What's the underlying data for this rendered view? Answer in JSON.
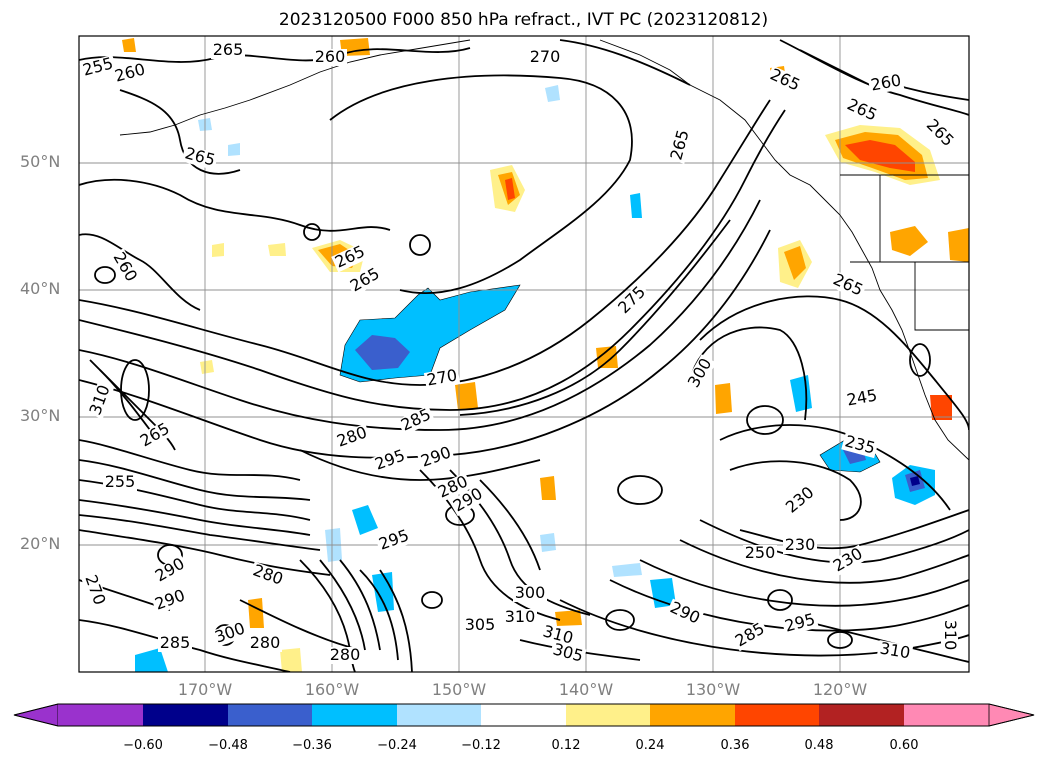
{
  "title": "2023120500 F000 850 hPa refract., IVT PC (2023120812)",
  "latitude_labels": [
    "50°N",
    "40°N",
    "30°N",
    "20°N"
  ],
  "longitude_labels": [
    "170°W",
    "160°W",
    "150°W",
    "140°W",
    "130°W",
    "120°W"
  ],
  "colorbar": {
    "ticks": [
      "−0.60",
      "−0.48",
      "−0.36",
      "−0.24",
      "−0.12",
      "0.12",
      "0.24",
      "0.36",
      "0.48",
      "0.60"
    ],
    "colors": [
      "#9a32cd",
      "#00008b",
      "#3a5fcd",
      "#00bfff",
      "#b0e2ff",
      "#ffffff",
      "#fff08a",
      "#ffa500",
      "#ff4500",
      "#b22222",
      "#ff89b4"
    ]
  },
  "contour_labels": [
    "255",
    "260",
    "265",
    "260",
    "270",
    "265",
    "260",
    "265",
    "265",
    "265",
    "265",
    "265",
    "270",
    "275",
    "280",
    "285",
    "290",
    "295",
    "280",
    "265",
    "280",
    "290",
    "270",
    "290",
    "295",
    "280",
    "285",
    "280",
    "300",
    "305",
    "310",
    "310",
    "305",
    "300",
    "290",
    "295",
    "285",
    "230",
    "235",
    "245",
    "265",
    "230",
    "250",
    "230",
    "300",
    "310",
    "310",
    "265",
    "260",
    "255",
    "290",
    "310"
  ]
}
